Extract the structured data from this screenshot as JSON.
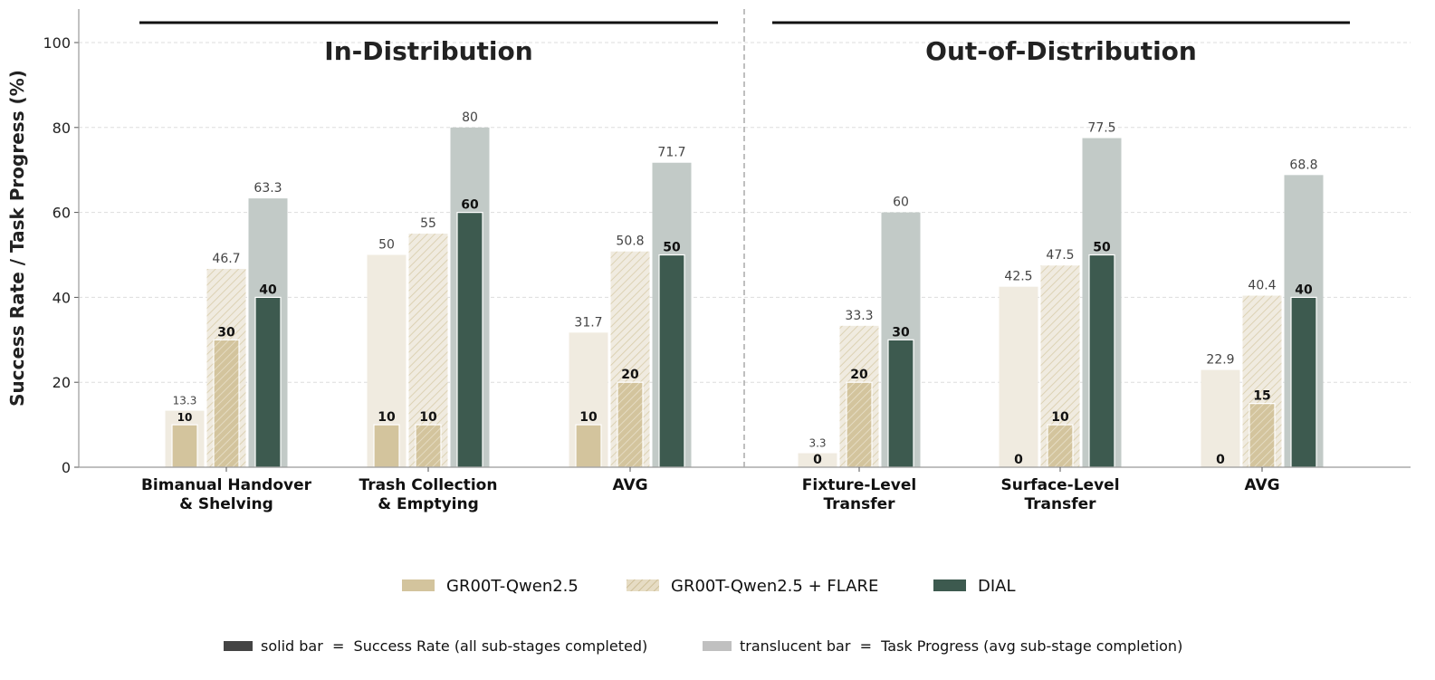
{
  "chart_data": {
    "type": "bar",
    "ylabel": "Success Rate / Task Progress (%)",
    "ylim": [
      0,
      108
    ],
    "yticks": [
      0,
      20,
      40,
      60,
      80,
      100
    ],
    "grid": true,
    "groups": [
      {
        "title": "In-Distribution",
        "categories": [
          {
            "label": [
              "Bimanual Handover",
              "& Shelving"
            ]
          },
          {
            "label": [
              "Trash Collection",
              "& Emptying"
            ]
          },
          {
            "label": [
              "AVG"
            ]
          }
        ]
      },
      {
        "title": "Out-of-Distribution",
        "categories": [
          {
            "label": [
              "Fixture-Level",
              "Transfer"
            ]
          },
          {
            "label": [
              "Surface-Level",
              "Transfer"
            ]
          },
          {
            "label": [
              "AVG"
            ]
          }
        ]
      }
    ],
    "series": [
      {
        "name": "GR00T-Qwen2.5",
        "pattern": "solid",
        "color": "#d3c49d",
        "light_color": "#f0ebe0",
        "success_rate": [
          10,
          10,
          10,
          0,
          0,
          0
        ],
        "task_progress": [
          13.3,
          50,
          31.7,
          3.3,
          42.5,
          22.9
        ],
        "success_labels": [
          "10",
          "10",
          "10",
          "0",
          "0",
          "0"
        ],
        "progress_labels": [
          "13.3",
          "50",
          "31.7",
          "3.3",
          "42.5",
          "22.9"
        ]
      },
      {
        "name": "GR00T-Qwen2.5 + FLARE",
        "pattern": "hatch",
        "color": "#d3c49d",
        "light_color": "#f0ebe0",
        "success_rate": [
          30,
          10,
          20,
          20,
          10,
          15
        ],
        "task_progress": [
          46.7,
          55,
          50.8,
          33.3,
          47.5,
          40.4
        ],
        "success_labels": [
          "30",
          "10",
          "20",
          "20",
          "10",
          "15"
        ],
        "progress_labels": [
          "46.7",
          "55",
          "50.8",
          "33.3",
          "47.5",
          "40.4"
        ]
      },
      {
        "name": "DIAL",
        "pattern": "solid",
        "color": "#3d5a4f",
        "light_color": "#c2cac7",
        "success_rate": [
          40,
          60,
          50,
          30,
          50,
          40
        ],
        "task_progress": [
          63.3,
          80,
          71.7,
          60,
          77.5,
          68.8
        ],
        "success_labels": [
          "40",
          "60",
          "50",
          "30",
          "50",
          "40"
        ],
        "progress_labels": [
          "63.3",
          "80",
          "71.7",
          "60",
          "77.5",
          "68.8"
        ]
      }
    ],
    "legend_placement": "bottom-center",
    "notes": [
      {
        "swatch_color": "#444444",
        "text": "solid bar  =  Success Rate (all sub-stages completed)"
      },
      {
        "swatch_color": "#c0c0c0",
        "text": "translucent bar  =  Task Progress (avg sub-stage completion)"
      }
    ]
  },
  "colors": {
    "axis": "#999999",
    "grid": "#dddddd",
    "title_text": "#222222",
    "value_text": "#444444"
  }
}
